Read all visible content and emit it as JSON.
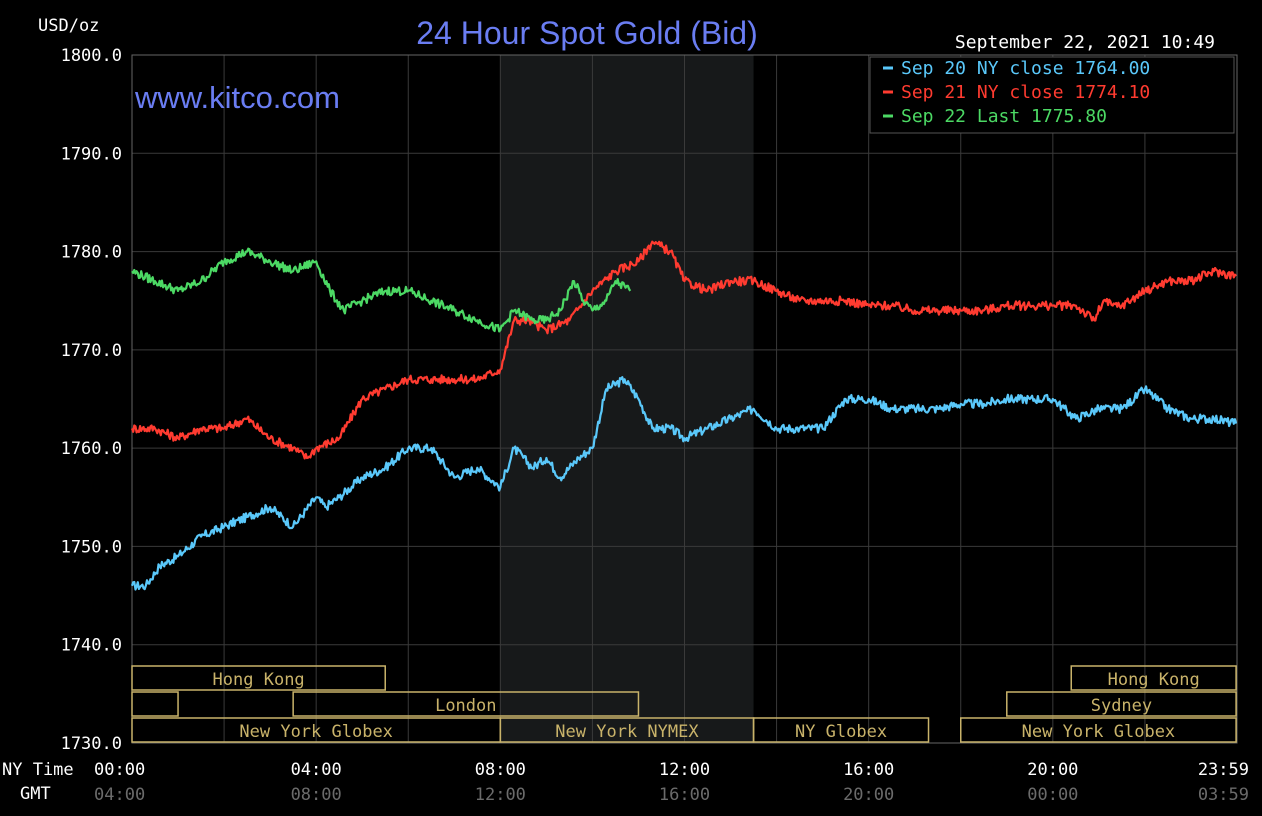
{
  "chart_data": {
    "type": "line",
    "title": "24 Hour Spot Gold (Bid)",
    "ylabel": "USD/oz",
    "watermark": "www.kitco.com",
    "timestamp": "September 22, 2021 10:49",
    "ylim": [
      1730,
      1800
    ],
    "y_ticks": [
      "1800.0",
      "1790.0",
      "1780.0",
      "1770.0",
      "1760.0",
      "1750.0",
      "1740.0",
      "1730.0"
    ],
    "xlim": [
      0,
      24
    ],
    "x_row_labels": {
      "ny": "NY Time",
      "gmt": "GMT"
    },
    "x_ticks_ny": [
      "00:00",
      "04:00",
      "08:00",
      "12:00",
      "16:00",
      "20:00",
      "23:59"
    ],
    "x_ticks_gmt": [
      "04:00",
      "08:00",
      "12:00",
      "16:00",
      "20:00",
      "00:00",
      "03:59"
    ],
    "highlight_hours": [
      8.0,
      13.5
    ],
    "grid": true,
    "legend_position": "top-right",
    "series": [
      {
        "name": "Sep 20 NY close 1764.00",
        "color": "#5ac8fa",
        "x": [
          0,
          0.3,
          0.6,
          1,
          1.5,
          2,
          2.5,
          3,
          3.5,
          4,
          4.2,
          4.5,
          5,
          5.5,
          6,
          6.5,
          7,
          7.5,
          8,
          8.3,
          8.7,
          9,
          9.3,
          9.7,
          10,
          10.3,
          10.7,
          11,
          11.3,
          11.7,
          12,
          12.5,
          13,
          13.5,
          14,
          14.5,
          15,
          15.5,
          16,
          16.5,
          17,
          17.5,
          18,
          18.5,
          19,
          19.5,
          20,
          20.5,
          21,
          21.5,
          22,
          22.5,
          23,
          23.5,
          23.98
        ],
        "y": [
          1746,
          1746,
          1748,
          1749,
          1751,
          1752,
          1753,
          1754,
          1752,
          1755,
          1754,
          1755,
          1757,
          1758,
          1760,
          1760,
          1757,
          1758,
          1756,
          1760,
          1758,
          1759,
          1757,
          1759,
          1760,
          1766,
          1767,
          1765,
          1762,
          1762,
          1761,
          1762,
          1763,
          1764,
          1762,
          1762,
          1762,
          1765,
          1765,
          1764,
          1764,
          1764,
          1764.5,
          1764.5,
          1765,
          1765,
          1765,
          1763,
          1764,
          1764,
          1766,
          1764,
          1763,
          1763,
          1762.5
        ]
      },
      {
        "name": "Sep 21 NY close 1774.10",
        "color": "#ff3b30",
        "x": [
          0,
          0.5,
          1,
          1.5,
          2,
          2.5,
          3,
          3.5,
          3.8,
          4,
          4.5,
          5,
          5.5,
          6,
          6.5,
          7,
          7.5,
          8,
          8.3,
          8.6,
          9,
          9.5,
          10,
          10.5,
          11,
          11.3,
          11.7,
          12,
          12.5,
          13,
          13.5,
          14,
          14.5,
          15,
          15.5,
          16,
          16.5,
          17,
          17.5,
          18,
          18.5,
          19,
          19.5,
          20,
          20.5,
          20.9,
          21.1,
          21.3,
          21.5,
          22,
          22.5,
          23,
          23.5,
          23.98
        ],
        "y": [
          1762,
          1762,
          1761,
          1762,
          1762,
          1763,
          1761,
          1760,
          1759,
          1760,
          1761,
          1765,
          1766,
          1767,
          1767,
          1767,
          1767,
          1768,
          1773,
          1773,
          1772,
          1773,
          1776,
          1778,
          1779,
          1781,
          1780,
          1777,
          1776,
          1777,
          1777,
          1776,
          1775,
          1775,
          1775,
          1774.5,
          1774.5,
          1774,
          1774,
          1774,
          1774,
          1774.5,
          1774.5,
          1774.5,
          1774.5,
          1773,
          1775,
          1774.5,
          1774.5,
          1776,
          1777,
          1777,
          1778,
          1777.5
        ]
      },
      {
        "name": "Sep 22 Last 1775.80",
        "color": "#4cd964",
        "x": [
          0,
          0.5,
          1,
          1.5,
          2,
          2.5,
          3,
          3.5,
          4,
          4.3,
          4.6,
          5,
          5.5,
          6,
          6.5,
          7,
          7.5,
          8,
          8.3,
          8.7,
          9,
          9.3,
          9.6,
          9.8,
          10,
          10.3,
          10.5,
          10.82
        ],
        "y": [
          1778,
          1777,
          1776,
          1777,
          1779,
          1780,
          1779,
          1778,
          1779,
          1776,
          1774,
          1775,
          1776,
          1776,
          1775,
          1774,
          1773,
          1772,
          1774,
          1773,
          1773,
          1774,
          1777,
          1775,
          1774,
          1775,
          1777,
          1776
        ]
      }
    ],
    "sessions": [
      {
        "name": "Hong Kong",
        "start": 0,
        "end": 5.5,
        "row": 0
      },
      {
        "name": "",
        "start": 0,
        "end": 1,
        "row": 1
      },
      {
        "name": "London",
        "start": 3.5,
        "end": 11,
        "row": 1
      },
      {
        "name": "New York Globex",
        "start": 0,
        "end": 8,
        "row": 2
      },
      {
        "name": "New York NYMEX",
        "start": 8,
        "end": 13.5,
        "row": 2
      },
      {
        "name": "NY Globex",
        "start": 13.5,
        "end": 17.3,
        "row": 2
      },
      {
        "name": "Hong Kong",
        "start": 20.4,
        "end": 23.98,
        "row": 0
      },
      {
        "name": "Sydney",
        "start": 19,
        "end": 23.98,
        "row": 1
      },
      {
        "name": "New York Globex",
        "start": 18,
        "end": 23.98,
        "row": 2
      }
    ]
  }
}
